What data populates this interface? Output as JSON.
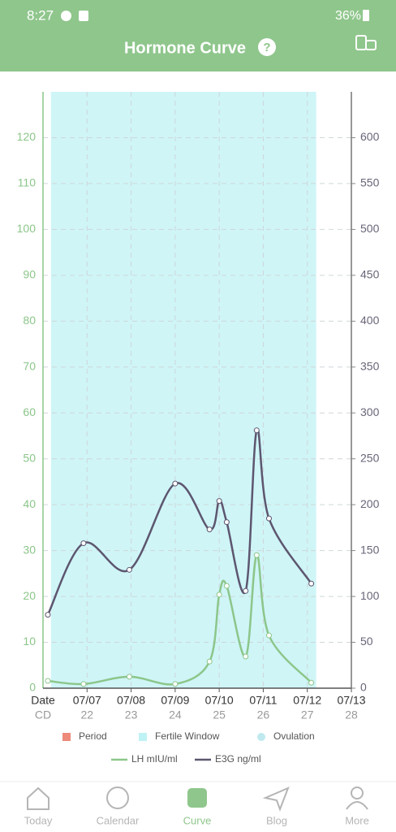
{
  "status_bar": {
    "time": "8:27",
    "battery": "36%"
  },
  "header": {
    "title": "Hormone Curve"
  },
  "chart_data": {
    "type": "line",
    "x_axis_label": "Date",
    "x_axis_sublabel": "CD",
    "xlim": [
      6,
      13
    ],
    "xticks": [
      {
        "value": 7,
        "label": "07/07"
      },
      {
        "value": 8,
        "label": "07/08"
      },
      {
        "value": 9,
        "label": "07/09"
      },
      {
        "value": 10,
        "label": "07/10"
      },
      {
        "value": 11,
        "label": "07/11"
      },
      {
        "value": 12,
        "label": "07/12"
      },
      {
        "value": 13,
        "label": "07/13"
      }
    ],
    "cd_labels": [
      22,
      23,
      24,
      25,
      26,
      27,
      28
    ],
    "ylim": [
      0,
      130
    ],
    "yticks": [
      0,
      10,
      20,
      30,
      40,
      50,
      60,
      70,
      80,
      90,
      100,
      110,
      120
    ],
    "y2lim": [
      0,
      650
    ],
    "y2ticks": [
      0,
      50,
      100,
      150,
      200,
      250,
      300,
      350,
      400,
      450,
      500,
      550,
      600
    ],
    "grid": true,
    "fertile_window": [
      6.18,
      12.2
    ],
    "x": [
      6.11,
      6.92,
      7.96,
      9.0,
      9.78,
      10.0,
      10.17,
      10.6,
      10.85,
      11.13,
      12.09
    ],
    "series": [
      {
        "name": "LH mIU/ml",
        "color": "#8cc68a",
        "values": [
          1.6,
          0.9,
          2.5,
          0.9,
          5.8,
          20.4,
          22.3,
          6.9,
          29,
          11.5,
          1.2
        ]
      },
      {
        "name": "E3G ng/ml",
        "color": "#5d566f",
        "axis": "y2",
        "values": [
          80,
          158,
          129,
          223,
          173,
          204,
          181,
          106,
          281,
          185,
          114
        ]
      }
    ],
    "legend_items": [
      {
        "name": "Period",
        "color": "#ee8a7a"
      },
      {
        "name": "Fertile Window",
        "color": "#bff2f4"
      },
      {
        "name": "Ovulation",
        "color": "#bfe9ef"
      }
    ]
  },
  "nav": [
    "Today",
    "Calendar",
    "Curve",
    "Blog",
    "More"
  ]
}
